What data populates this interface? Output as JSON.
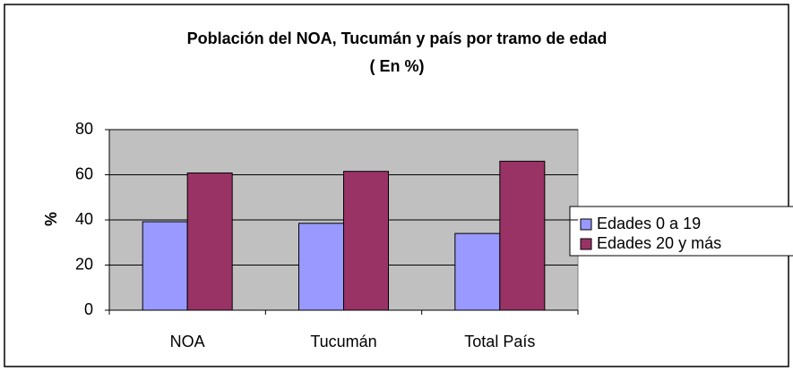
{
  "chart_data": {
    "type": "bar",
    "title": "Población del NOA, Tucumán y país por tramo de edad",
    "subtitle": "( En %)",
    "y_label": "%",
    "categories": [
      "NOA",
      "Tucumán",
      "Total País"
    ],
    "series": [
      {
        "name": "Edades 0 a  19",
        "color": "#9999ff",
        "values": [
          39.2,
          38.5,
          34
        ]
      },
      {
        "name": "Edades 20 y más",
        "color": "#993366",
        "values": [
          60.8,
          61.5,
          66
        ]
      }
    ],
    "ylim": [
      0,
      80
    ],
    "yticks": [
      0,
      20,
      40,
      60,
      80
    ],
    "grid": true,
    "legend": "right"
  }
}
